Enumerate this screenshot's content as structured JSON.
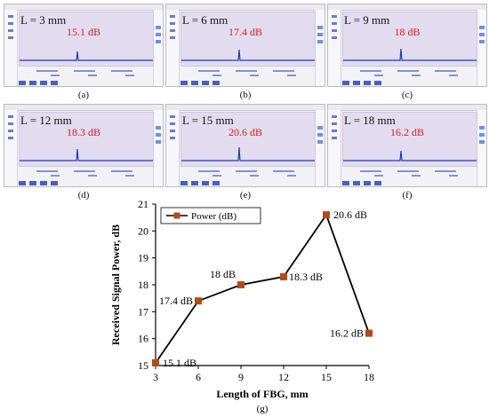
{
  "panels": [
    {
      "l_label": "L = 3 mm",
      "db_label": "15.1 dB",
      "caption": "(a)"
    },
    {
      "l_label": "L = 6 mm",
      "db_label": "17.4 dB",
      "caption": "(b)"
    },
    {
      "l_label": "L = 9 mm",
      "db_label": "18 dB",
      "caption": "(c)"
    },
    {
      "l_label": "L = 12 mm",
      "db_label": "18.3 dB",
      "caption": "(d)"
    },
    {
      "l_label": "L = 15 mm",
      "db_label": "20.6 dB",
      "caption": "(e)"
    },
    {
      "l_label": "L = 18 mm",
      "db_label": "16.2 dB",
      "caption": "(f)"
    }
  ],
  "colors": {
    "line": "#000000",
    "marker": "#b34a1b",
    "annotation": "#000000",
    "db_text": "#d12020",
    "panel_plot_line": "#1d3bb3",
    "panel_plot_bg": "#e3dbef"
  },
  "chart_data": {
    "type": "line",
    "x": [
      3,
      6,
      9,
      12,
      15,
      18
    ],
    "series": [
      {
        "name": "Power (dB)",
        "values": [
          15.1,
          17.4,
          18.0,
          18.3,
          20.6,
          16.2
        ]
      }
    ],
    "xlabel": "Length of FBG, mm",
    "ylabel": "Received Signal Power, dB",
    "xlim": [
      3,
      18
    ],
    "ylim": [
      15,
      21
    ],
    "xticks": [
      3,
      6,
      9,
      12,
      15,
      18
    ],
    "yticks": [
      15,
      16,
      17,
      18,
      19,
      20,
      21
    ],
    "legend_position": "top-left",
    "grid": false,
    "annotations": [
      "15.1 dB",
      "17.4 dB",
      "18 dB",
      "18.3 dB",
      "20.6 dB",
      "16.2 dB"
    ],
    "figure_label": "(g)"
  }
}
